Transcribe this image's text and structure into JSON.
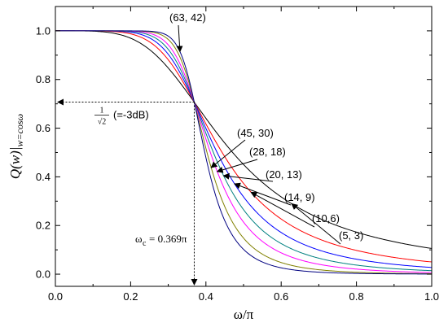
{
  "chart_data": {
    "type": "line",
    "xlabel": "ω/π",
    "ylabel": "Q(w)|_{w=cosω}",
    "xlim": [
      0.0,
      1.0
    ],
    "ylim": [
      -0.05,
      1.1
    ],
    "x_ticks": [
      "0.0",
      "0.2",
      "0.4",
      "0.6",
      "0.8",
      "1.0"
    ],
    "y_ticks": [
      "0.0",
      "0.2",
      "0.4",
      "0.6",
      "0.8",
      "1.0"
    ],
    "x_tick_values": [
      0.0,
      0.2,
      0.4,
      0.6,
      0.8,
      1.0
    ],
    "y_tick_values": [
      0.0,
      0.2,
      0.4,
      0.6,
      0.8,
      1.0
    ],
    "grid": false,
    "crossover": {
      "x": 0.369,
      "y": 0.7071
    },
    "series": [
      {
        "name": "(5, 3)",
        "color": "#000000",
        "steepness": 4.5
      },
      {
        "name": "(10,6)",
        "color": "#ff0000",
        "steepness": 6.0
      },
      {
        "name": "(14, 9)",
        "color": "#0000ff",
        "steepness": 7.2
      },
      {
        "name": "(20, 13)",
        "color": "#008080",
        "steepness": 8.5
      },
      {
        "name": "(28, 18)",
        "color": "#ff00ff",
        "steepness": 10.0
      },
      {
        "name": "(45, 30)",
        "color": "#808000",
        "steepness": 12.5
      },
      {
        "name": "(63, 42)",
        "color": "#000080",
        "steepness": 15.0
      }
    ],
    "annotations": {
      "half_power_fraction": "1",
      "half_power_root": "√2",
      "half_power_db": "(=-3dB)",
      "omega_c_symbol": "ω",
      "omega_c_sub": "c",
      "omega_c_value": "= 0.369π",
      "labels": [
        {
          "text": "(63, 42)",
          "series": "(63, 42)"
        },
        {
          "text": "(45, 30)",
          "series": "(45, 30)"
        },
        {
          "text": "(28, 18)",
          "series": "(28, 18)"
        },
        {
          "text": "(20, 13)",
          "series": "(20, 13)"
        },
        {
          "text": "(14, 9)",
          "series": "(14, 9)"
        },
        {
          "text": "(10,6)",
          "series": "(10,6)"
        },
        {
          "text": "(5, 3)",
          "series": "(5, 3)"
        }
      ]
    }
  }
}
